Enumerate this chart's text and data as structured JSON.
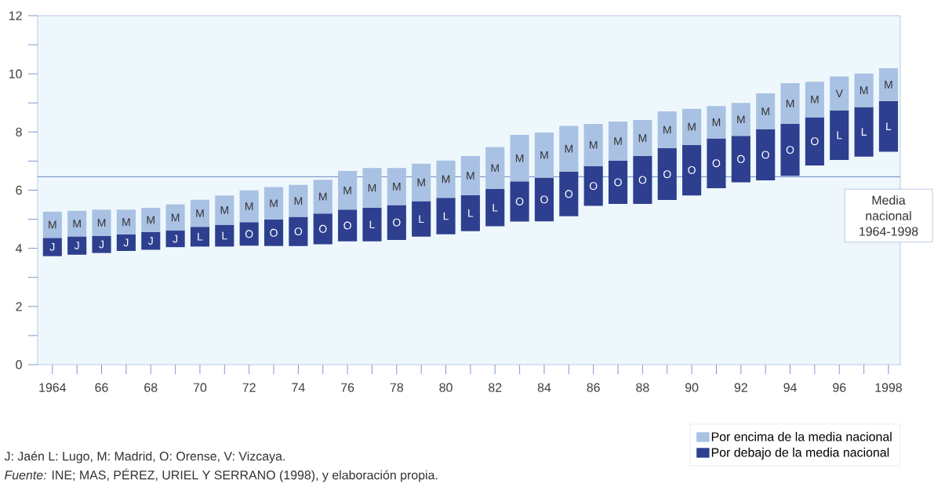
{
  "chart_data": {
    "type": "bar",
    "categories": [
      "1964",
      null,
      "66",
      null,
      "68",
      null,
      "70",
      null,
      "72",
      null,
      "74",
      null,
      "76",
      null,
      "78",
      null,
      "80",
      null,
      "82",
      null,
      "84",
      null,
      "86",
      null,
      "88",
      null,
      "90",
      null,
      "92",
      null,
      "94",
      null,
      "96",
      null,
      "1998"
    ],
    "series": [
      {
        "name": "Por debajo de la media nacional",
        "color": "#2e3f8f",
        "base": [
          3.73,
          3.78,
          3.84,
          3.91,
          3.95,
          4.04,
          4.06,
          4.06,
          4.09,
          4.08,
          4.08,
          4.14,
          4.24,
          4.24,
          4.29,
          4.4,
          4.48,
          4.59,
          4.76,
          4.92,
          4.93,
          5.1,
          5.46,
          5.53,
          5.53,
          5.66,
          5.82,
          6.07,
          6.27,
          6.34,
          6.49,
          6.85,
          7.04,
          7.15,
          7.32
        ],
        "values": [
          0.63,
          0.63,
          0.59,
          0.57,
          0.61,
          0.57,
          0.68,
          0.75,
          0.81,
          0.91,
          1.0,
          1.06,
          1.09,
          1.16,
          1.2,
          1.22,
          1.26,
          1.24,
          1.28,
          1.38,
          1.5,
          1.54,
          1.37,
          1.48,
          1.64,
          1.78,
          1.74,
          1.71,
          1.6,
          1.75,
          1.79,
          1.66,
          1.7,
          1.71,
          1.75
        ],
        "value_labels": [
          "J",
          "J",
          "J",
          "J",
          "J",
          "J",
          "L",
          "L",
          "O",
          "O",
          "O",
          "O",
          "O",
          "L",
          "O",
          "L",
          "L",
          "L",
          "L",
          "O",
          "O",
          "O",
          "O",
          "O",
          "O",
          "O",
          "O",
          "O",
          "O",
          "O",
          "O",
          "O",
          "L",
          "L",
          "L"
        ]
      },
      {
        "name": "Por encima de la media nacional",
        "color": "#a9c1e3",
        "base": [
          4.36,
          4.41,
          4.43,
          4.48,
          4.56,
          4.61,
          4.74,
          4.81,
          4.9,
          4.99,
          5.08,
          5.2,
          5.33,
          5.4,
          5.49,
          5.62,
          5.74,
          5.83,
          6.04,
          6.3,
          6.43,
          6.64,
          6.83,
          7.01,
          7.17,
          7.44,
          7.56,
          7.78,
          7.87,
          8.09,
          8.28,
          8.51,
          8.74,
          8.86,
          9.07
        ],
        "values": [
          0.9,
          0.88,
          0.9,
          0.85,
          0.83,
          0.9,
          0.93,
          1.01,
          1.09,
          1.12,
          1.1,
          1.16,
          1.33,
          1.36,
          1.27,
          1.29,
          1.28,
          1.34,
          1.44,
          1.6,
          1.55,
          1.57,
          1.45,
          1.35,
          1.24,
          1.27,
          1.24,
          1.11,
          1.13,
          1.24,
          1.4,
          1.22,
          1.17,
          1.15,
          1.12
        ],
        "value_labels": [
          "M",
          "M",
          "M",
          "M",
          "M",
          "M",
          "M",
          "M",
          "M",
          "M",
          "M",
          "M",
          "M",
          "M",
          "M",
          "M",
          "M",
          "M",
          "M",
          "M",
          "M",
          "M",
          "M",
          "M",
          "M",
          "M",
          "M",
          "M",
          "M",
          "M",
          "M",
          "M",
          "V",
          "M",
          "M"
        ]
      }
    ],
    "ylim": [
      0,
      12
    ],
    "yticks": [
      0,
      {
        "value": 1,
        "label": null
      },
      2,
      {
        "value": 3,
        "label": null
      },
      4,
      {
        "value": 5,
        "label": null
      },
      6,
      {
        "value": 7,
        "label": null
      },
      8,
      {
        "value": 9,
        "label": null
      },
      10,
      {
        "value": 11,
        "label": null
      },
      12
    ],
    "ref_lines": [
      {
        "axis": "y",
        "value": 6.46,
        "label": "Media nacional 1964-1998",
        "color": "#4a6bb5"
      }
    ],
    "legend": "bottom right",
    "grid": false,
    "annotations": [
      "J: Jaén L: Lugo, M: Madrid, O: Orense, V: Vizcaya.",
      "*Fuente:* INE; MAS, PÉREZ, URIEL Y SERRANO (1998), y elaboración propia."
    ]
  }
}
